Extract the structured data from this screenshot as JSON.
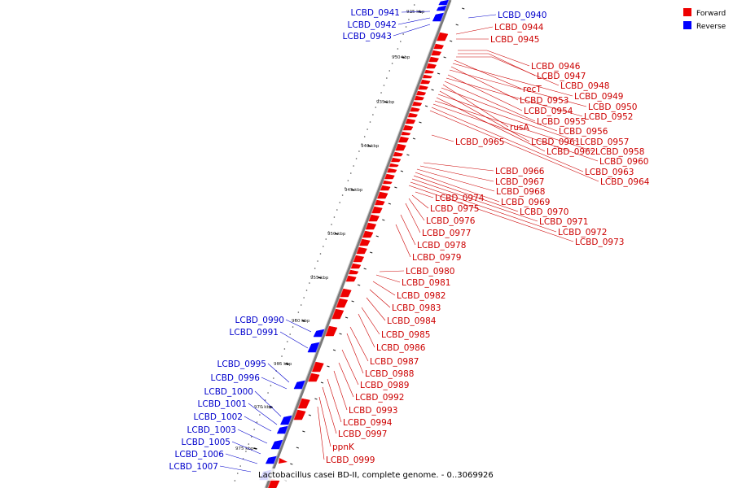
{
  "colors": {
    "forward": "#ee0000",
    "reverse": "#0000ff",
    "axis": "#7a7a7a",
    "label_forward": "#cc0000",
    "label_reverse": "#0000cc"
  },
  "legend": [
    {
      "label": "Forward",
      "color": "#ee0000"
    },
    {
      "label": "Reverse",
      "color": "#0000ff"
    }
  ],
  "caption": "Lactobacillus casei BD-II, complete genome. - 0..3069926",
  "kbp_labels": [
    "925 kbp",
    "930 kbp",
    "935 kbp",
    "940 kbp",
    "945 kbp",
    "950 kbp",
    "955 kbp",
    "960 kbp",
    "965 kbp",
    "970 kbp",
    "975 kbp"
  ],
  "reverse_labels": [
    "LCBD_0941",
    "LCBD_0942",
    "LCBD_0943",
    "LCBD_0940",
    "LCBD_0990",
    "LCBD_0991",
    "LCBD_0995",
    "LCBD_0996",
    "LCBD_1000",
    "LCBD_1001",
    "LCBD_1002",
    "LCBD_1003",
    "LCBD_1005",
    "LCBD_1006",
    "LCBD_1007"
  ],
  "forward_labels": [
    "LCBD_0944",
    "LCBD_0945",
    "LCBD_0946",
    "LCBD_0947",
    "LCBD_0948",
    "recT",
    "LCBD_0949",
    "LCBD_0953",
    "LCBD_0950",
    "LCBD_0954",
    "LCBD_0952",
    "LCBD_0955",
    "rusA",
    "LCBD_0956",
    "LCBD_0965",
    "LCBD_0961",
    "LCBD_0957",
    "LCBD_0962",
    "LCBD_0958",
    "LCBD_0960",
    "LCBD_0963",
    "LCBD_0966",
    "LCBD_0964",
    "LCBD_0967",
    "LCBD_0968",
    "LCBD_0974",
    "LCBD_0969",
    "LCBD_0975",
    "LCBD_0970",
    "LCBD_0976",
    "LCBD_0971",
    "LCBD_0977",
    "LCBD_0972",
    "LCBD_0978",
    "LCBD_0973",
    "LCBD_0979",
    "LCBD_0980",
    "LCBD_0981",
    "LCBD_0982",
    "LCBD_0983",
    "LCBD_0984",
    "LCBD_0985",
    "LCBD_0986",
    "LCBD_0987",
    "LCBD_0988",
    "LCBD_0989",
    "LCBD_0992",
    "LCBD_0993",
    "LCBD_0994",
    "LCBD_0997",
    "ppnK",
    "LCBD_0999"
  ]
}
